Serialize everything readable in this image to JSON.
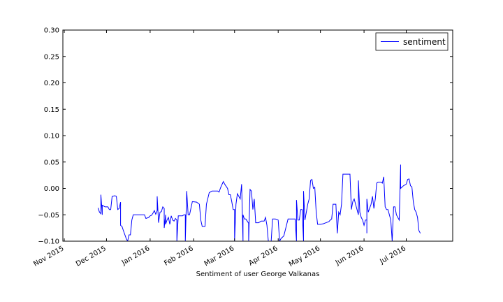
{
  "chart_data": {
    "type": "line",
    "title": "",
    "xlabel": "Sentiment of user George Valkanas",
    "ylabel": "",
    "xlim": [
      "2015-10-31",
      "2016-08-03"
    ],
    "ylim": [
      -0.1,
      0.3
    ],
    "x_ticks": [
      {
        "date": "2015-11-01",
        "label": "Nov 2015"
      },
      {
        "date": "2015-12-01",
        "label": "Dec 2015"
      },
      {
        "date": "2016-01-01",
        "label": "Jan 2016"
      },
      {
        "date": "2016-02-01",
        "label": "Feb 2016"
      },
      {
        "date": "2016-03-01",
        "label": "Mar 2016"
      },
      {
        "date": "2016-04-01",
        "label": "Apr 2016"
      },
      {
        "date": "2016-05-01",
        "label": "May 2016"
      },
      {
        "date": "2016-06-01",
        "label": "Jun 2016"
      },
      {
        "date": "2016-07-01",
        "label": "Jul 2016"
      }
    ],
    "y_ticks": [
      {
        "value": 0.3,
        "label": "0.30"
      },
      {
        "value": 0.25,
        "label": "0.25"
      },
      {
        "value": 0.2,
        "label": "0.20"
      },
      {
        "value": 0.15,
        "label": "0.15"
      },
      {
        "value": 0.1,
        "label": "0.10"
      },
      {
        "value": 0.05,
        "label": "0.05"
      },
      {
        "value": 0.0,
        "label": "0.00"
      },
      {
        "value": -0.05,
        "label": "−0.05"
      },
      {
        "value": -0.1,
        "label": "−0.10"
      }
    ],
    "grid": false,
    "legend": {
      "position": "top-right"
    },
    "series": [
      {
        "name": "sentiment",
        "color": "#0000ff",
        "points": [
          [
            "2015-11-25",
            -0.037
          ],
          [
            "2015-11-26",
            -0.045
          ],
          [
            "2015-11-27",
            -0.048
          ],
          [
            "2015-11-27",
            -0.012
          ],
          [
            "2015-11-28",
            -0.05
          ],
          [
            "2015-11-28",
            -0.032
          ],
          [
            "2015-11-30",
            -0.035
          ],
          [
            "2015-12-02",
            -0.035
          ],
          [
            "2015-12-03",
            -0.04
          ],
          [
            "2015-12-04",
            -0.04
          ],
          [
            "2015-12-05",
            -0.015
          ],
          [
            "2015-12-07",
            -0.014
          ],
          [
            "2015-12-08",
            -0.015
          ],
          [
            "2015-12-09",
            -0.04
          ],
          [
            "2015-12-10",
            -0.038
          ],
          [
            "2015-12-11",
            -0.026
          ],
          [
            "2015-12-11",
            -0.07
          ],
          [
            "2015-12-12",
            -0.072
          ],
          [
            "2015-12-13",
            -0.08
          ],
          [
            "2015-12-15",
            -0.095
          ],
          [
            "2015-12-16",
            -0.1
          ],
          [
            "2015-12-17",
            -0.088
          ],
          [
            "2015-12-18",
            -0.088
          ],
          [
            "2015-12-19",
            -0.06
          ],
          [
            "2015-12-20",
            -0.05
          ],
          [
            "2015-12-23",
            -0.05
          ],
          [
            "2015-12-25",
            -0.05
          ],
          [
            "2015-12-28",
            -0.05
          ],
          [
            "2015-12-29",
            -0.057
          ],
          [
            "2015-12-31",
            -0.055
          ],
          [
            "2016-01-01",
            -0.052
          ],
          [
            "2016-01-02",
            -0.051
          ],
          [
            "2016-01-03",
            -0.047
          ],
          [
            "2016-01-04",
            -0.042
          ],
          [
            "2016-01-05",
            -0.049
          ],
          [
            "2016-01-06",
            -0.042
          ],
          [
            "2016-01-06",
            -0.015
          ],
          [
            "2016-01-07",
            -0.065
          ],
          [
            "2016-01-08",
            -0.045
          ],
          [
            "2016-01-09",
            -0.044
          ],
          [
            "2016-01-10",
            -0.035
          ],
          [
            "2016-01-11",
            -0.038
          ],
          [
            "2016-01-11",
            -0.075
          ],
          [
            "2016-01-12",
            -0.05
          ],
          [
            "2016-01-12",
            -0.068
          ],
          [
            "2016-01-13",
            -0.06
          ],
          [
            "2016-01-14",
            -0.055
          ],
          [
            "2016-01-15",
            -0.068
          ],
          [
            "2016-01-16",
            -0.052
          ],
          [
            "2016-01-17",
            -0.06
          ],
          [
            "2016-01-18",
            -0.062
          ],
          [
            "2016-01-19",
            -0.057
          ],
          [
            "2016-01-20",
            -0.06
          ],
          [
            "2016-01-20",
            -0.1
          ],
          [
            "2016-01-21",
            -0.052
          ],
          [
            "2016-01-24",
            -0.052
          ],
          [
            "2016-01-25",
            -0.05
          ],
          [
            "2016-01-26",
            -0.05
          ],
          [
            "2016-01-26",
            -0.1
          ],
          [
            "2016-01-27",
            -0.005
          ],
          [
            "2016-01-28",
            -0.05
          ],
          [
            "2016-01-29",
            -0.05
          ],
          [
            "2016-01-31",
            -0.025
          ],
          [
            "2016-02-03",
            -0.026
          ],
          [
            "2016-02-05",
            -0.03
          ],
          [
            "2016-02-06",
            -0.06
          ],
          [
            "2016-02-07",
            -0.072
          ],
          [
            "2016-02-09",
            -0.072
          ],
          [
            "2016-02-10",
            -0.03
          ],
          [
            "2016-02-12",
            -0.008
          ],
          [
            "2016-02-14",
            -0.005
          ],
          [
            "2016-02-18",
            -0.005
          ],
          [
            "2016-02-19",
            -0.007
          ],
          [
            "2016-02-20",
            0.001
          ],
          [
            "2016-02-22",
            0.013
          ],
          [
            "2016-02-23",
            0.008
          ],
          [
            "2016-02-25",
            0.0
          ],
          [
            "2016-02-26",
            -0.012
          ],
          [
            "2016-02-27",
            -0.012
          ],
          [
            "2016-02-28",
            -0.025
          ],
          [
            "2016-02-29",
            -0.04
          ],
          [
            "2016-03-01",
            -0.04
          ],
          [
            "2016-03-01",
            -0.1
          ],
          [
            "2016-03-02",
            -0.03
          ],
          [
            "2016-03-03",
            -0.01
          ],
          [
            "2016-03-05",
            -0.02
          ],
          [
            "2016-03-06",
            0.008
          ],
          [
            "2016-03-07",
            -0.1
          ],
          [
            "2016-03-07",
            -0.05
          ],
          [
            "2016-03-08",
            -0.058
          ],
          [
            "2016-03-09",
            -0.058
          ],
          [
            "2016-03-11",
            -0.066
          ],
          [
            "2016-03-11",
            -0.1
          ],
          [
            "2016-03-12",
            -0.002
          ],
          [
            "2016-03-13",
            -0.005
          ],
          [
            "2016-03-14",
            -0.04
          ],
          [
            "2016-03-15",
            -0.02
          ],
          [
            "2016-03-16",
            -0.065
          ],
          [
            "2016-03-18",
            -0.065
          ],
          [
            "2016-03-20",
            -0.062
          ],
          [
            "2016-03-22",
            -0.062
          ],
          [
            "2016-03-23",
            -0.055
          ],
          [
            "2016-03-24",
            -0.07
          ],
          [
            "2016-03-25",
            -0.1
          ],
          [
            "2016-03-27",
            -0.1
          ],
          [
            "2016-03-28",
            -0.058
          ],
          [
            "2016-03-30",
            -0.058
          ],
          [
            "2016-04-01",
            -0.06
          ],
          [
            "2016-04-02",
            -0.1
          ],
          [
            "2016-04-03",
            -0.095
          ],
          [
            "2016-04-05",
            -0.09
          ],
          [
            "2016-04-08",
            -0.058
          ],
          [
            "2016-04-12",
            -0.058
          ],
          [
            "2016-04-13",
            -0.058
          ],
          [
            "2016-04-14",
            -0.1
          ],
          [
            "2016-04-14",
            -0.022
          ],
          [
            "2016-04-15",
            -0.06
          ],
          [
            "2016-04-16",
            -0.06
          ],
          [
            "2016-04-17",
            -0.04
          ],
          [
            "2016-04-18",
            -0.04
          ],
          [
            "2016-04-19",
            -0.1
          ],
          [
            "2016-04-19",
            -0.005
          ],
          [
            "2016-04-20",
            -0.06
          ],
          [
            "2016-04-21",
            -0.045
          ],
          [
            "2016-04-22",
            -0.03
          ],
          [
            "2016-04-23",
            -0.02
          ],
          [
            "2016-04-24",
            0.015
          ],
          [
            "2016-04-25",
            0.017
          ],
          [
            "2016-04-26",
            0.0
          ],
          [
            "2016-04-27",
            0.002
          ],
          [
            "2016-04-28",
            -0.045
          ],
          [
            "2016-04-29",
            -0.068
          ],
          [
            "2016-05-01",
            -0.068
          ],
          [
            "2016-05-03",
            -0.067
          ],
          [
            "2016-05-05",
            -0.065
          ],
          [
            "2016-05-07",
            -0.063
          ],
          [
            "2016-05-08",
            -0.06
          ],
          [
            "2016-05-09",
            -0.058
          ],
          [
            "2016-05-10",
            -0.03
          ],
          [
            "2016-05-12",
            -0.03
          ],
          [
            "2016-05-13",
            -0.085
          ],
          [
            "2016-05-14",
            -0.045
          ],
          [
            "2016-05-15",
            -0.05
          ],
          [
            "2016-05-16",
            -0.03
          ],
          [
            "2016-05-17",
            0.027
          ],
          [
            "2016-05-19",
            0.027
          ],
          [
            "2016-05-21",
            0.027
          ],
          [
            "2016-05-22",
            0.027
          ],
          [
            "2016-05-23",
            -0.04
          ],
          [
            "2016-05-24",
            -0.025
          ],
          [
            "2016-05-25",
            -0.02
          ],
          [
            "2016-05-26",
            -0.03
          ],
          [
            "2016-05-27",
            -0.04
          ],
          [
            "2016-05-28",
            -0.05
          ],
          [
            "2016-05-28",
            0.015
          ],
          [
            "2016-05-29",
            -0.045
          ],
          [
            "2016-05-30",
            -0.055
          ],
          [
            "2016-05-31",
            -0.06
          ],
          [
            "2016-06-01",
            -0.07
          ],
          [
            "2016-06-02",
            -0.06
          ],
          [
            "2016-06-03",
            -0.06
          ],
          [
            "2016-06-03",
            -0.085
          ],
          [
            "2016-06-03",
            -0.02
          ],
          [
            "2016-06-04",
            -0.045
          ],
          [
            "2016-06-06",
            -0.03
          ],
          [
            "2016-06-07",
            -0.015
          ],
          [
            "2016-06-08",
            -0.038
          ],
          [
            "2016-06-09",
            -0.02
          ],
          [
            "2016-06-10",
            0.01
          ],
          [
            "2016-06-11",
            0.012
          ],
          [
            "2016-06-13",
            0.012
          ],
          [
            "2016-06-14",
            0.01
          ],
          [
            "2016-06-15",
            0.022
          ],
          [
            "2016-06-16",
            -0.035
          ],
          [
            "2016-06-17",
            -0.04
          ],
          [
            "2016-06-18",
            -0.04
          ],
          [
            "2016-06-19",
            -0.05
          ],
          [
            "2016-06-20",
            -0.06
          ],
          [
            "2016-06-21",
            -0.1
          ],
          [
            "2016-06-22",
            -0.035
          ],
          [
            "2016-06-23",
            -0.035
          ],
          [
            "2016-06-24",
            -0.05
          ],
          [
            "2016-06-25",
            -0.055
          ],
          [
            "2016-06-26",
            -0.06
          ],
          [
            "2016-06-27",
            0.045
          ],
          [
            "2016-06-27",
            0.0
          ],
          [
            "2016-06-29",
            0.005
          ],
          [
            "2016-07-01",
            0.008
          ],
          [
            "2016-07-02",
            0.017
          ],
          [
            "2016-07-03",
            0.018
          ],
          [
            "2016-07-04",
            0.005
          ],
          [
            "2016-07-05",
            0.003
          ],
          [
            "2016-07-06",
            -0.025
          ],
          [
            "2016-07-07",
            -0.04
          ],
          [
            "2016-07-08",
            -0.045
          ],
          [
            "2016-07-09",
            -0.055
          ],
          [
            "2016-07-10",
            -0.08
          ],
          [
            "2016-07-11",
            -0.085
          ]
        ]
      }
    ]
  }
}
